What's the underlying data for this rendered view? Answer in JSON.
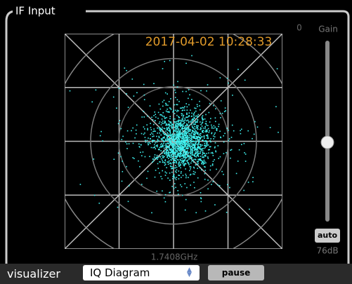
{
  "panel": {
    "title": "IF Input"
  },
  "display": {
    "timestamp": "2017-04-02 10:28:33",
    "zero_label": "0",
    "frequency": "1.7408GHz"
  },
  "gain": {
    "label": "Gain",
    "auto_button": "auto",
    "value_text": "76dB"
  },
  "toolbar": {
    "label": "visualizer",
    "select": "IQ Diagram",
    "pause_button": "pause"
  }
}
